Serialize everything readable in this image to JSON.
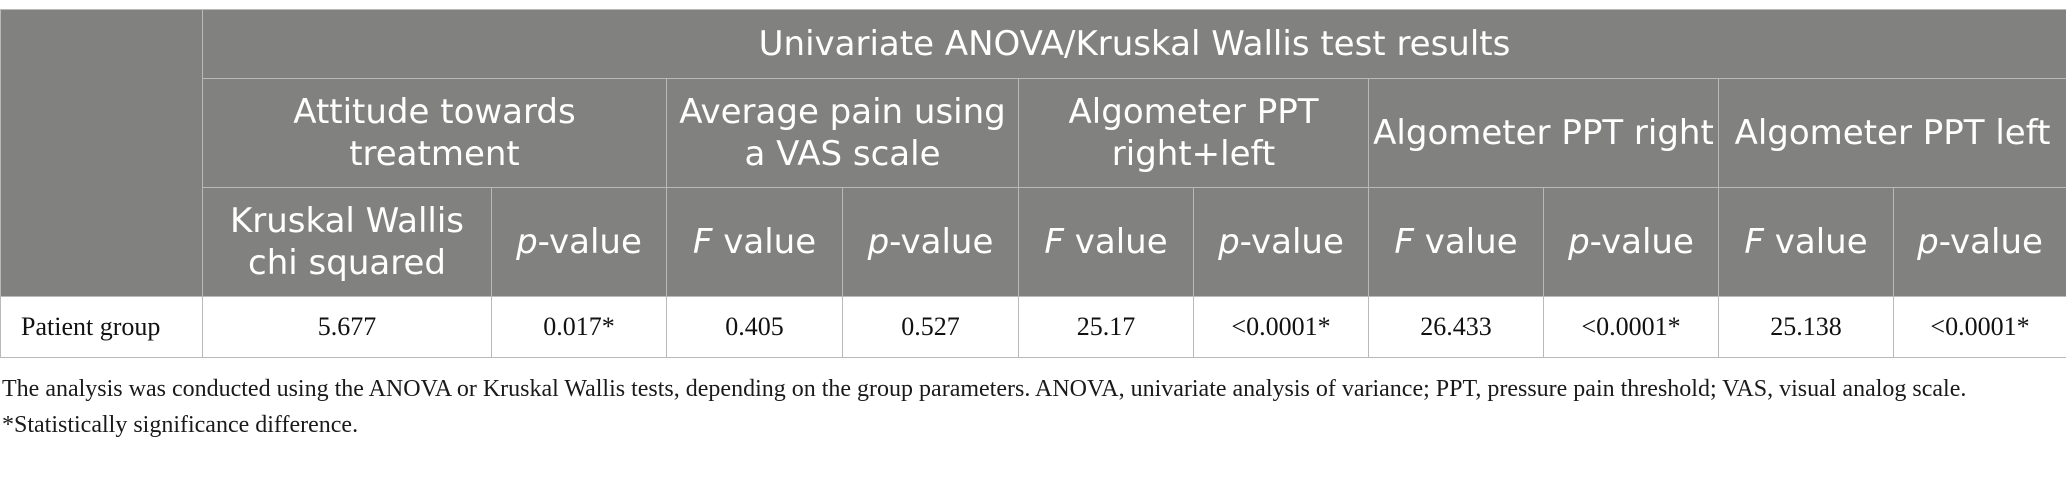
{
  "table": {
    "title": "Univariate ANOVA/Kruskal Wallis test results",
    "groups": [
      "Attitude towards treatment",
      "Average pain using a VAS scale",
      "Algometer PPT right+left",
      "Algometer PPT right",
      "Algometer PPT left"
    ],
    "subheaders": {
      "kruskal_line1": "Kruskal Wallis",
      "kruskal_line2": "chi squared",
      "p_italic": "p",
      "p_rest": "-value",
      "f_italic": "F",
      "f_rest": " value"
    },
    "row": {
      "label": "Patient group",
      "values": [
        "5.677",
        "0.017*",
        "0.405",
        "0.527",
        "25.17",
        "<0.0001*",
        "26.433",
        "<0.0001*",
        "25.138",
        "<0.0001*"
      ]
    }
  },
  "notes": {
    "line1": "The analysis was conducted using the ANOVA or Kruskal Wallis tests, depending on the group parameters. ANOVA, univariate analysis of variance; PPT, pressure pain threshold; VAS, visual analog scale.",
    "line2": "*Statistically significance difference."
  }
}
